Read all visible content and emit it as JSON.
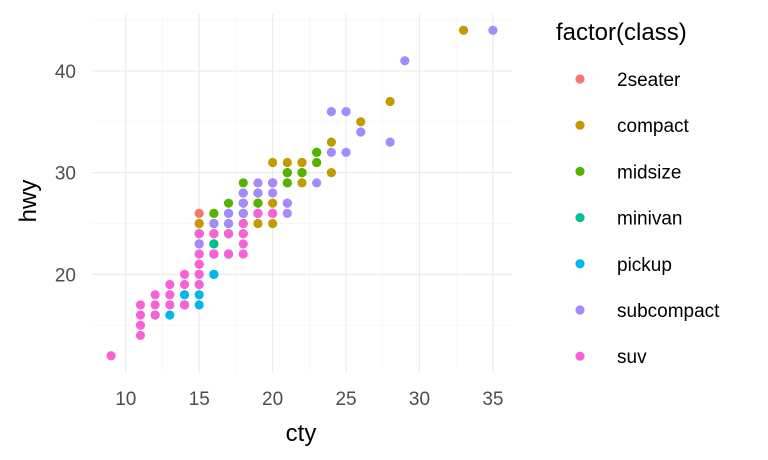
{
  "chart_data": {
    "type": "scatter",
    "title": "",
    "xlabel": "cty",
    "ylabel": "hwy",
    "xlim": [
      7.7,
      36.3
    ],
    "ylim": [
      10.4,
      45.6
    ],
    "x_ticks": [
      10,
      15,
      20,
      25,
      30,
      35
    ],
    "x_tick_labels": [
      "10",
      "15",
      "20",
      "25",
      "30",
      "35"
    ],
    "y_ticks": [
      20,
      30,
      40
    ],
    "y_tick_labels": [
      "20",
      "30",
      "40"
    ],
    "grid": true,
    "legend": {
      "title": "factor(class)",
      "placement": "right"
    },
    "series": [
      {
        "name": "2seater",
        "color": "#F8766D",
        "points": [
          [
            15,
            24
          ],
          [
            15,
            25
          ],
          [
            15,
            26
          ],
          [
            16,
            26
          ],
          [
            15,
            23
          ]
        ]
      },
      {
        "name": "compact",
        "color": "#C49A00",
        "points": [
          [
            33,
            44
          ],
          [
            28,
            37
          ],
          [
            26,
            35
          ],
          [
            24,
            33
          ],
          [
            24,
            30
          ],
          [
            22,
            31
          ],
          [
            21,
            31
          ],
          [
            20,
            31
          ],
          [
            23,
            31
          ],
          [
            22,
            30
          ],
          [
            21,
            29
          ],
          [
            21,
            30
          ],
          [
            20,
            29
          ],
          [
            22,
            29
          ],
          [
            19,
            26
          ],
          [
            18,
            26
          ],
          [
            19,
            27
          ],
          [
            20,
            27
          ],
          [
            20,
            25
          ],
          [
            19,
            25
          ],
          [
            18,
            25
          ],
          [
            17,
            24
          ],
          [
            16,
            23
          ],
          [
            15,
            25
          ],
          [
            20,
            26
          ],
          [
            21,
            27
          ],
          [
            22,
            31
          ]
        ]
      },
      {
        "name": "midsize",
        "color": "#53B400",
        "points": [
          [
            23,
            32
          ],
          [
            23,
            31
          ],
          [
            21,
            29
          ],
          [
            21,
            30
          ],
          [
            20,
            29
          ],
          [
            18,
            29
          ],
          [
            18,
            28
          ],
          [
            19,
            28
          ],
          [
            19,
            27
          ],
          [
            18,
            27
          ],
          [
            17,
            27
          ],
          [
            17,
            26
          ],
          [
            18,
            26
          ],
          [
            16,
            26
          ],
          [
            16,
            25
          ],
          [
            17,
            25
          ],
          [
            18,
            25
          ],
          [
            19,
            26
          ],
          [
            17,
            24
          ],
          [
            16,
            24
          ],
          [
            15,
            24
          ],
          [
            22,
            30
          ],
          [
            23,
            32
          ]
        ]
      },
      {
        "name": "minivan",
        "color": "#00C094",
        "points": [
          [
            16,
            22
          ],
          [
            17,
            22
          ],
          [
            15,
            24
          ],
          [
            17,
            24
          ],
          [
            18,
            24
          ],
          [
            16,
            23
          ],
          [
            17,
            22
          ]
        ]
      },
      {
        "name": "pickup",
        "color": "#00B6EB",
        "points": [
          [
            12,
            16
          ],
          [
            13,
            16
          ],
          [
            14,
            17
          ],
          [
            14,
            18
          ],
          [
            15,
            17
          ],
          [
            15,
            19
          ],
          [
            15,
            20
          ],
          [
            16,
            20
          ],
          [
            14,
            17
          ],
          [
            15,
            18
          ],
          [
            16,
            22
          ],
          [
            17,
            22
          ],
          [
            16,
            20
          ]
        ]
      },
      {
        "name": "subcompact",
        "color": "#A58AFF",
        "points": [
          [
            35,
            44
          ],
          [
            29,
            41
          ],
          [
            25,
            36
          ],
          [
            24,
            36
          ],
          [
            26,
            34
          ],
          [
            28,
            33
          ],
          [
            24,
            32
          ],
          [
            25,
            32
          ],
          [
            23,
            29
          ],
          [
            21,
            26
          ],
          [
            21,
            27
          ],
          [
            20,
            28
          ],
          [
            20,
            29
          ],
          [
            19,
            29
          ],
          [
            19,
            28
          ],
          [
            18,
            28
          ],
          [
            18,
            27
          ],
          [
            19,
            26
          ],
          [
            18,
            26
          ],
          [
            17,
            25
          ],
          [
            16,
            25
          ],
          [
            16,
            24
          ],
          [
            15,
            23
          ],
          [
            15,
            22
          ],
          [
            15,
            21
          ],
          [
            17,
            26
          ]
        ]
      },
      {
        "name": "suv",
        "color": "#FB61D7",
        "points": [
          [
            9,
            12
          ],
          [
            11,
            14
          ],
          [
            11,
            15
          ],
          [
            11,
            16
          ],
          [
            11,
            17
          ],
          [
            12,
            17
          ],
          [
            12,
            18
          ],
          [
            13,
            17
          ],
          [
            13,
            18
          ],
          [
            13,
            19
          ],
          [
            14,
            17
          ],
          [
            14,
            19
          ],
          [
            14,
            20
          ],
          [
            12,
            16
          ],
          [
            15,
            20
          ],
          [
            15,
            21
          ],
          [
            15,
            22
          ],
          [
            15,
            19
          ],
          [
            16,
            22
          ],
          [
            17,
            22
          ],
          [
            18,
            22
          ],
          [
            18,
            23
          ],
          [
            18,
            24
          ],
          [
            18,
            25
          ],
          [
            19,
            26
          ],
          [
            20,
            26
          ],
          [
            17,
            24
          ],
          [
            16,
            24
          ],
          [
            15,
            24
          ]
        ]
      }
    ]
  }
}
